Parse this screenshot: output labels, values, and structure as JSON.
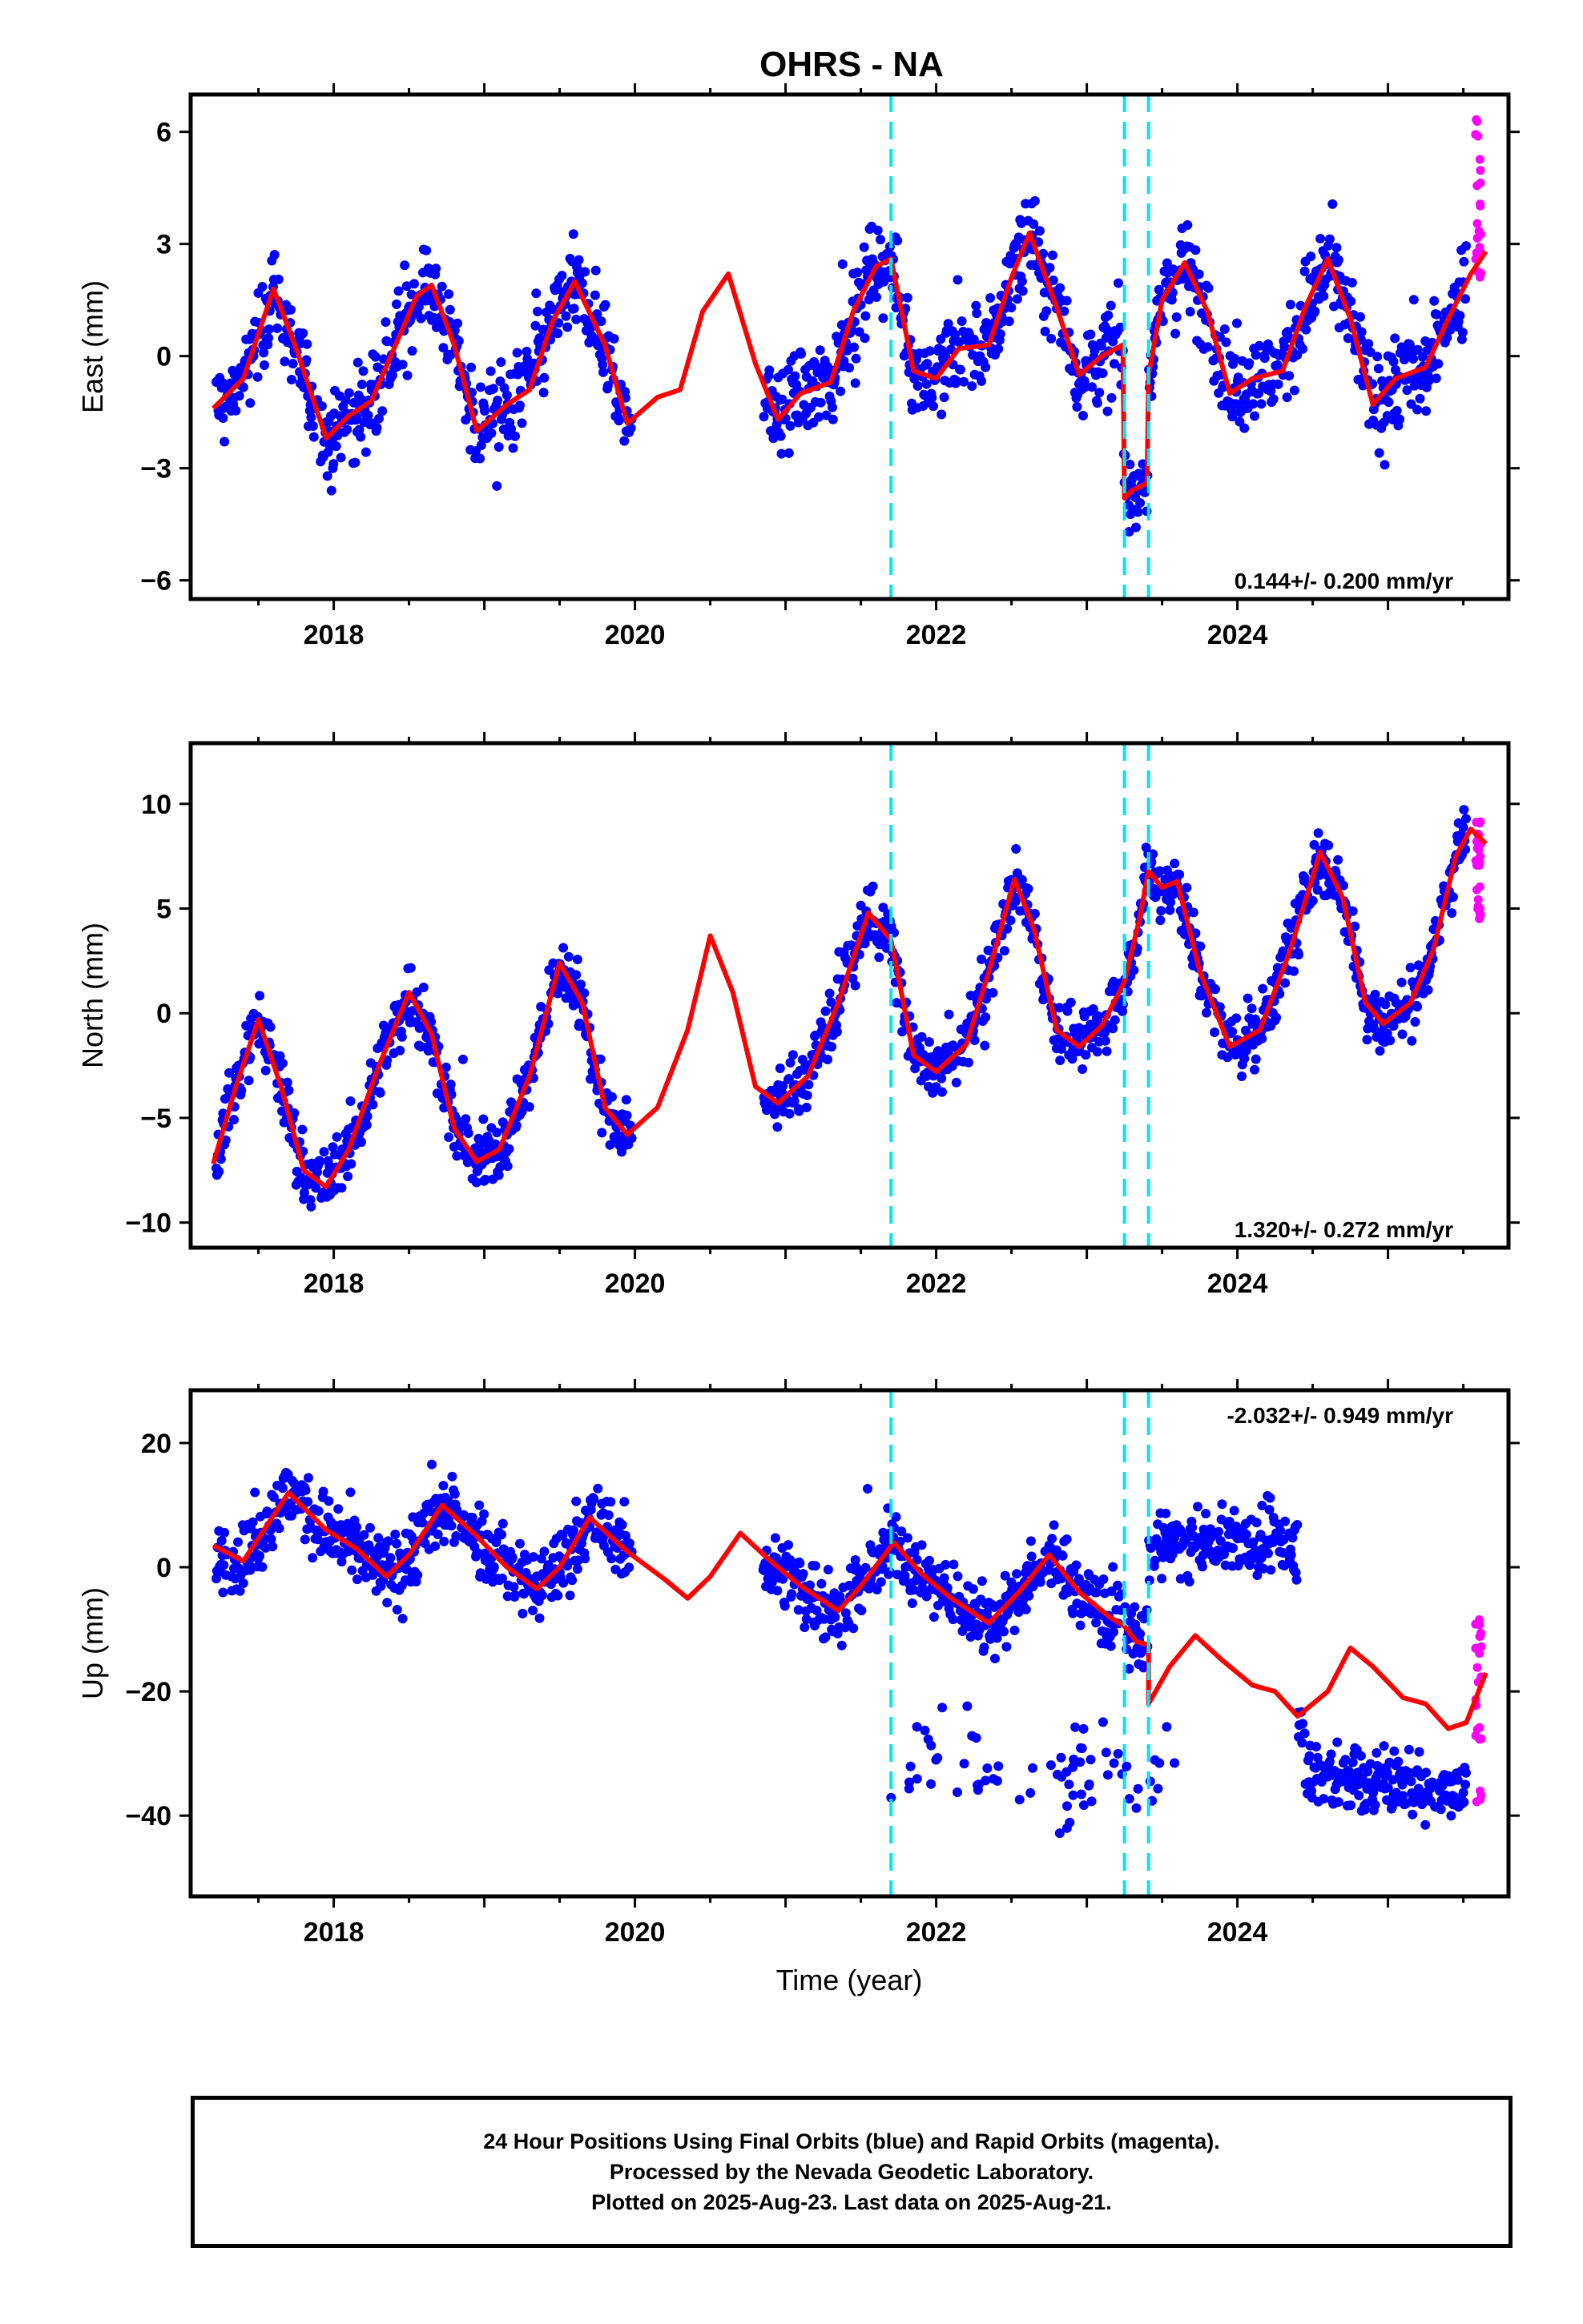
{
  "title": "OHRS - NA",
  "xlabel": "Time (year)",
  "footer": {
    "line1": "24 Hour Positions Using Final Orbits (blue) and Rapid Orbits (magenta).",
    "line2": "Processed by the Nevada Geodetic Laboratory.",
    "line3": "Plotted on 2025-Aug-23. Last data on 2025-Aug-21."
  },
  "colors": {
    "final": "#0000ff",
    "rapid": "#ff00ff",
    "model": "#ff0000",
    "steps": "#00e5ff"
  },
  "chart_data": [
    {
      "type": "scatter",
      "panel": "east",
      "ylabel": "East (mm)",
      "rate": "0.144+/- 0.200 mm/yr",
      "xlim": [
        2017.05,
        2025.8
      ],
      "ylim": [
        -6.5,
        7.0
      ],
      "xticks": [
        2018,
        2020,
        2022,
        2024
      ],
      "xticklabels": [
        "2018",
        "2020",
        "2022",
        "2024"
      ],
      "yticks": [
        -6,
        -3,
        0,
        3,
        6
      ],
      "yticklabels": [
        "−6",
        "−3",
        "0",
        "3",
        "6"
      ],
      "step_lines": [
        2021.7,
        2023.25,
        2023.41
      ],
      "model": {
        "x": [
          2017.2,
          2017.4,
          2017.6,
          2017.75,
          2017.95,
          2018.1,
          2018.25,
          2018.4,
          2018.55,
          2018.65,
          2018.8,
          2018.95,
          2019.15,
          2019.3,
          2019.45,
          2019.6,
          2019.8,
          2019.95,
          2020.15,
          2020.3,
          2020.45,
          2020.62,
          2020.8,
          2020.95,
          2021.1,
          2021.3,
          2021.45,
          2021.6,
          2021.7,
          2021.85,
          2022.0,
          2022.15,
          2022.35,
          2022.5,
          2022.62,
          2022.8,
          2022.95,
          2023.1,
          2023.24,
          2023.25,
          2023.3,
          2023.4,
          2023.41,
          2023.5,
          2023.65,
          2023.8,
          2023.95,
          2024.1,
          2024.3,
          2024.45,
          2024.6,
          2024.75,
          2024.9,
          2025.05,
          2025.25,
          2025.4,
          2025.55,
          2025.65
        ],
        "y": [
          -1.4,
          -0.6,
          1.8,
          0.2,
          -2.2,
          -1.6,
          -1.2,
          0.2,
          1.6,
          1.9,
          0.3,
          -2.0,
          -1.3,
          -0.9,
          0.9,
          2.0,
          0.3,
          -1.8,
          -1.1,
          -0.9,
          1.2,
          2.2,
          -0.2,
          -1.7,
          -1.0,
          -0.7,
          1.2,
          2.4,
          2.6,
          -0.4,
          -0.6,
          0.2,
          0.3,
          2.1,
          3.3,
          1.3,
          -0.5,
          0.0,
          0.3,
          -3.8,
          -3.6,
          -3.4,
          -0.5,
          1.5,
          2.5,
          1.2,
          -1.0,
          -0.6,
          -0.4,
          1.3,
          2.6,
          1.0,
          -1.3,
          -0.6,
          -0.3,
          1.0,
          2.2,
          2.8
        ]
      },
      "points_summary": "Daily final-orbit positions scatter about the model with ~0.9 mm noise; rapid-orbit points up to 6.8 mm in 2025.6"
    },
    {
      "type": "scatter",
      "panel": "north",
      "ylabel": "North (mm)",
      "rate": "1.320+/- 0.272 mm/yr",
      "xlim": [
        2017.05,
        2025.8
      ],
      "ylim": [
        -11.2,
        12.9
      ],
      "xticks": [
        2018,
        2020,
        2022,
        2024
      ],
      "xticklabels": [
        "2018",
        "2020",
        "2022",
        "2024"
      ],
      "yticks": [
        -10,
        -5,
        0,
        5,
        10
      ],
      "yticklabels": [
        "−10",
        "−5",
        "0",
        "5",
        "10"
      ],
      "step_lines": [
        2021.7,
        2023.25,
        2023.41
      ],
      "model": {
        "x": [
          2017.2,
          2017.35,
          2017.5,
          2017.65,
          2017.8,
          2017.95,
          2018.1,
          2018.3,
          2018.5,
          2018.65,
          2018.8,
          2018.95,
          2019.1,
          2019.3,
          2019.5,
          2019.65,
          2019.8,
          2019.95,
          2020.15,
          2020.35,
          2020.5,
          2020.65,
          2020.8,
          2020.95,
          2021.15,
          2021.35,
          2021.55,
          2021.7,
          2021.85,
          2022.0,
          2022.2,
          2022.35,
          2022.52,
          2022.65,
          2022.8,
          2022.95,
          2023.1,
          2023.25,
          2023.35,
          2023.41,
          2023.5,
          2023.6,
          2023.75,
          2023.95,
          2024.15,
          2024.35,
          2024.55,
          2024.7,
          2024.85,
          2024.97,
          2025.15,
          2025.3,
          2025.45,
          2025.55,
          2025.65
        ],
        "y": [
          -7.2,
          -3.5,
          -0.3,
          -3.5,
          -7.5,
          -8.3,
          -6.5,
          -2.5,
          1.0,
          -1.0,
          -5.5,
          -7.1,
          -6.5,
          -3.0,
          2.4,
          0.5,
          -4.5,
          -5.8,
          -4.5,
          -0.8,
          3.7,
          1.0,
          -3.5,
          -4.3,
          -3.0,
          0.5,
          4.8,
          3.5,
          -2.0,
          -2.8,
          -1.5,
          2.0,
          6.4,
          4.0,
          -0.8,
          -1.6,
          -0.6,
          1.5,
          4.5,
          6.8,
          6.0,
          6.3,
          2.0,
          -1.6,
          -0.8,
          3.0,
          7.7,
          5.5,
          0.5,
          -0.5,
          0.5,
          3.0,
          7.5,
          8.8,
          8.1
        ]
      },
      "points_summary": "Daily final-orbit positions scatter about the model with ~1.1 mm noise; rapid-orbit points 4 to 9 mm in 2025.6"
    },
    {
      "type": "scatter",
      "panel": "up",
      "ylabel": "Up (mm)",
      "rate": "-2.032+/- 0.949 mm/yr",
      "xlim": [
        2017.05,
        2025.8
      ],
      "ylim": [
        -53.0,
        28.5
      ],
      "xticks": [
        2018,
        2020,
        2022,
        2024
      ],
      "xticklabels": [
        "2018",
        "2020",
        "2022",
        "2024"
      ],
      "yticks": [
        -40,
        -20,
        0,
        20
      ],
      "yticklabels": [
        "−40",
        "−20",
        "0",
        "20"
      ],
      "step_lines": [
        2021.7,
        2023.25,
        2023.41
      ],
      "model": {
        "x": [
          2017.2,
          2017.4,
          2017.7,
          2017.95,
          2018.15,
          2018.35,
          2018.5,
          2018.72,
          2018.95,
          2019.15,
          2019.35,
          2019.5,
          2019.7,
          2019.95,
          2020.2,
          2020.35,
          2020.5,
          2020.7,
          2020.9,
          2021.1,
          2021.35,
          2021.5,
          2021.72,
          2021.9,
          2022.1,
          2022.35,
          2022.55,
          2022.75,
          2022.95,
          2023.15,
          2023.25,
          2023.33,
          2023.41,
          2023.41,
          2023.55,
          2023.72,
          2023.9,
          2024.1,
          2024.25,
          2024.4,
          2024.6,
          2024.75,
          2024.9,
          2025.1,
          2025.25,
          2025.4,
          2025.52,
          2025.65
        ],
        "y": [
          3.5,
          1.0,
          12.0,
          6.0,
          3.0,
          -1.5,
          2.0,
          10.0,
          5.0,
          0.0,
          -3.5,
          0.0,
          8.0,
          2.5,
          -2.0,
          -5.0,
          -1.5,
          5.5,
          1.0,
          -3.0,
          -7.0,
          -3.0,
          4.0,
          -1.0,
          -5.0,
          -9.0,
          -4.0,
          2.0,
          -4.0,
          -8.0,
          -9.5,
          -12.0,
          -12.5,
          -22.0,
          -16.0,
          -11.0,
          -15.0,
          -19.0,
          -20.0,
          -24.0,
          -20.0,
          -13.0,
          -16.0,
          -21.0,
          -22.0,
          -26.0,
          -25.0,
          -17.0
        ]
      },
      "points_summary": "Final-orbit positions follow the model with ~4 mm noise; an offset cluster near -40 to -25 mm after mid-2024 and scattered low outliers; rapid-orbit points -42 to -6 mm in 2025.6"
    }
  ]
}
